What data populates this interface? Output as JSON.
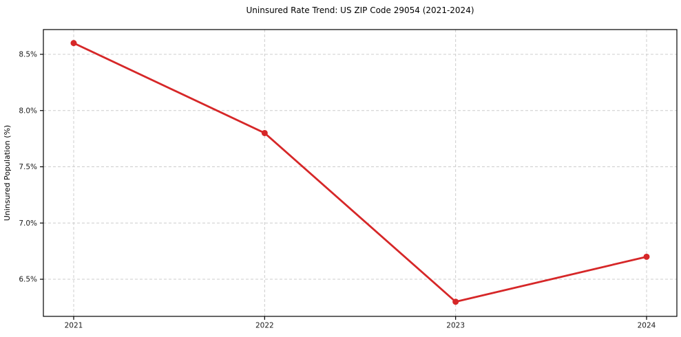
{
  "chart": {
    "title": "Uninsured Rate Trend: US ZIP Code 29054 (2021-2024)",
    "ylabel": "Uninsured Population (%)"
  },
  "chart_data": {
    "type": "line",
    "title": "Uninsured Rate Trend: US ZIP Code 29054 (2021-2024)",
    "xlabel": "",
    "ylabel": "Uninsured Population (%)",
    "x": [
      2021,
      2022,
      2023,
      2024
    ],
    "x_tick_labels": [
      "2021",
      "2022",
      "2023",
      "2024"
    ],
    "values": [
      8.6,
      7.8,
      6.3,
      6.7
    ],
    "y_ticks": [
      6.5,
      7.0,
      7.5,
      8.0,
      8.5
    ],
    "y_tick_labels": [
      "6.5%",
      "7.0%",
      "7.5%",
      "8.0%",
      "8.5%"
    ],
    "ylim": [
      6.17,
      8.72
    ],
    "grid": true,
    "grid_style": "dashed",
    "legend_position": "none",
    "colors": {
      "line": "#d62728",
      "marker": "#d62728",
      "grid": "#cccccc",
      "spine": "#000000",
      "background": "#ffffff",
      "text": "#000000"
    }
  }
}
